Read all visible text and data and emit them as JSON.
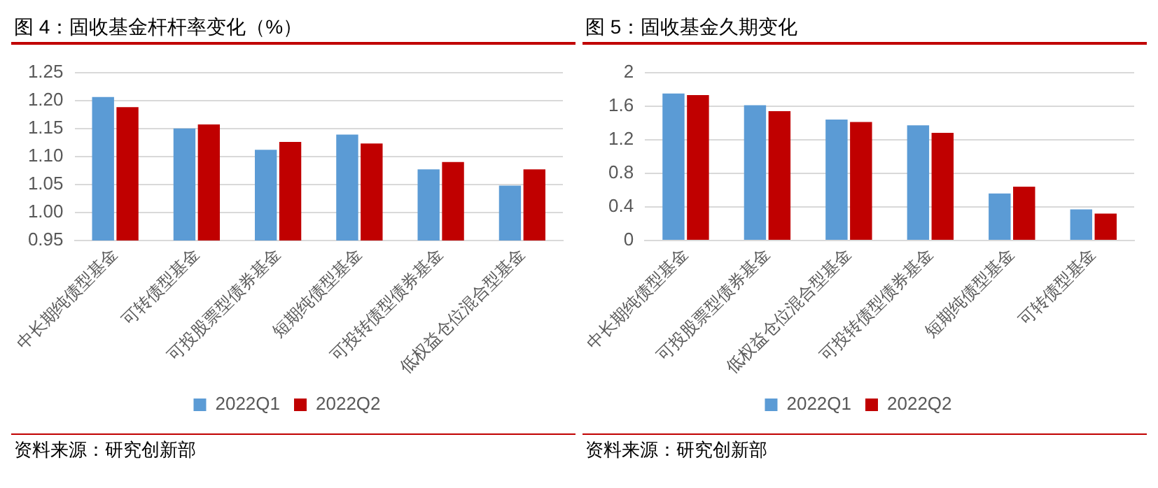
{
  "chart_data": [
    {
      "type": "bar",
      "title": "图 4：固收基金杆杆率变化（%）",
      "categories": [
        "中长期纯债型基金",
        "可转债型基金",
        "可投股票型债券基金",
        "短期纯债型基金",
        "可投转债型债券基金",
        "低权益仓位混合型基金"
      ],
      "series": [
        {
          "name": "2022Q1",
          "color": "#5b9bd5",
          "values": [
            1.206,
            1.15,
            1.112,
            1.139,
            1.077,
            1.048
          ]
        },
        {
          "name": "2022Q2",
          "color": "#c00000",
          "values": [
            1.188,
            1.157,
            1.126,
            1.123,
            1.09,
            1.077
          ]
        }
      ],
      "ylim": [
        0.95,
        1.25
      ],
      "yticks": [
        {
          "value": 0.95,
          "label": "0.95"
        },
        {
          "value": 1.0,
          "label": "1.00"
        },
        {
          "value": 1.05,
          "label": "1.05"
        },
        {
          "value": 1.1,
          "label": "1.10"
        },
        {
          "value": 1.15,
          "label": "1.15"
        },
        {
          "value": 1.2,
          "label": "1.20"
        },
        {
          "value": 1.25,
          "label": "1.25"
        }
      ],
      "grid": "y",
      "legend": "bottom",
      "annotations": [
        "资料来源：研究创新部"
      ]
    },
    {
      "type": "bar",
      "title": "图 5：固收基金久期变化",
      "categories": [
        "中长期纯债型基金",
        "可投股票型债券基金",
        "低权益仓位混合型基金",
        "可投转债型债券基金",
        "短期纯债型基金",
        "可转债型基金"
      ],
      "series": [
        {
          "name": "2022Q1",
          "color": "#5b9bd5",
          "values": [
            1.75,
            1.61,
            1.44,
            1.37,
            0.56,
            0.37
          ]
        },
        {
          "name": "2022Q2",
          "color": "#c00000",
          "values": [
            1.73,
            1.54,
            1.41,
            1.28,
            0.64,
            0.32
          ]
        }
      ],
      "ylim": [
        0,
        2
      ],
      "yticks": [
        0,
        {
          "value": 0.4,
          "label": "0.4"
        },
        {
          "value": 0.8,
          "label": "0.8"
        },
        {
          "value": 1.2,
          "label": "1.2"
        },
        {
          "value": 1.6,
          "label": "1.6"
        },
        2
      ],
      "grid": "y",
      "legend": "bottom",
      "annotations": [
        "资料来源：研究创新部"
      ]
    }
  ]
}
